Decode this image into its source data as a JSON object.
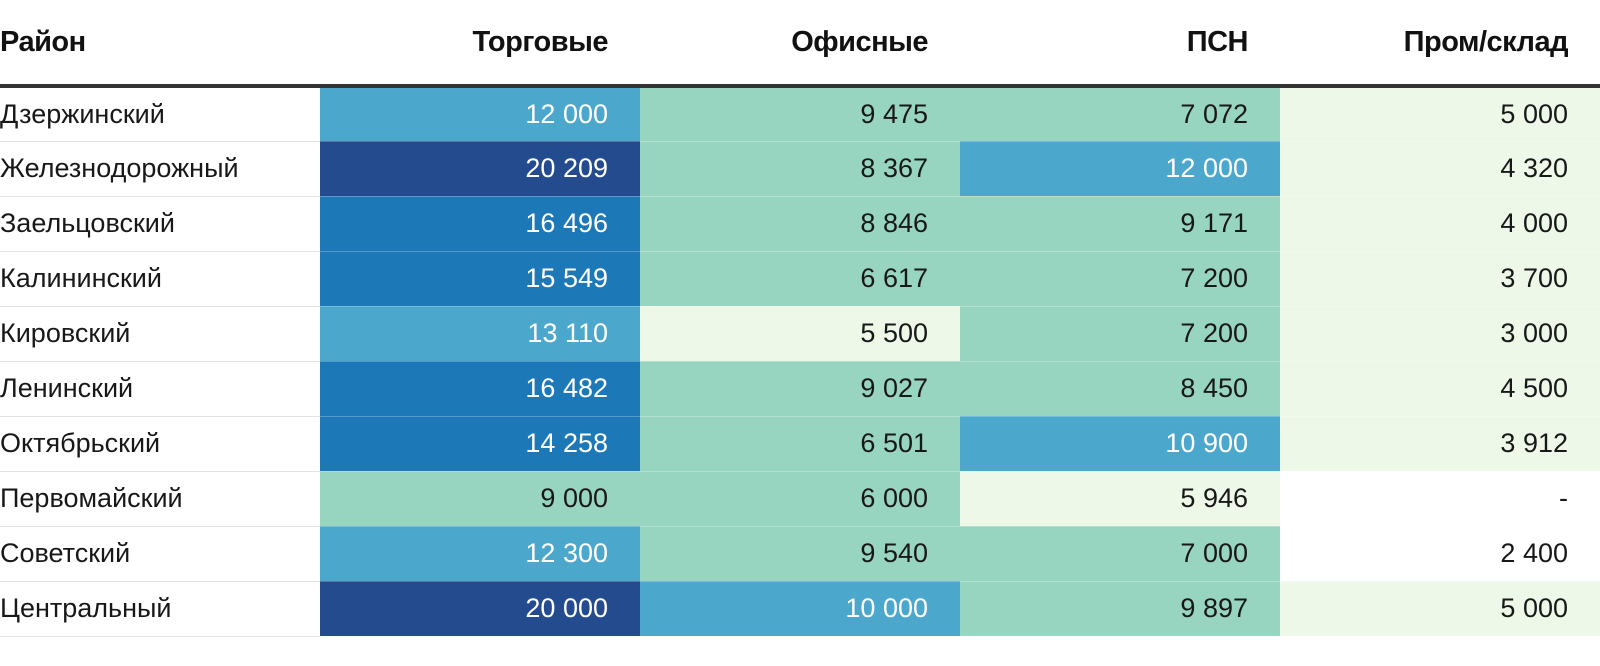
{
  "chart_data": {
    "type": "table",
    "title": "",
    "columns": [
      "Район",
      "Торговые",
      "Офисные",
      "ПСН",
      "Пром/склад"
    ],
    "rows": [
      {
        "district": "Дзержинский",
        "values": [
          "12 000",
          "9 475",
          "7 072",
          "5 000"
        ]
      },
      {
        "district": "Железнодорожный",
        "values": [
          "20 209",
          "8 367",
          "12 000",
          "4 320"
        ]
      },
      {
        "district": "Заельцовский",
        "values": [
          "16 496",
          "8 846",
          "9 171",
          "4 000"
        ]
      },
      {
        "district": "Калининский",
        "values": [
          "15 549",
          "6 617",
          "7 200",
          "3 700"
        ]
      },
      {
        "district": "Кировский",
        "values": [
          "13 110",
          "5 500",
          "7 200",
          "3 000"
        ]
      },
      {
        "district": "Ленинский",
        "values": [
          "16 482",
          "9 027",
          "8 450",
          "4 500"
        ]
      },
      {
        "district": "Октябрьский",
        "values": [
          "14 258",
          "6 501",
          "10 900",
          "3 912"
        ]
      },
      {
        "district": "Первомайский",
        "values": [
          "9 000",
          "6 000",
          "5 946",
          "-"
        ]
      },
      {
        "district": "Советский",
        "values": [
          "12 300",
          "9 540",
          "7 000",
          "2 400"
        ]
      },
      {
        "district": "Центральный",
        "values": [
          "20 000",
          "10 000",
          "9 897",
          "5 000"
        ]
      }
    ],
    "color_scale": {
      "thresholds": [
        3000,
        6000,
        10000,
        14000,
        20000
      ],
      "colors": [
        "#ffffff",
        "#edf8e9",
        "#98d5c0",
        "#4ba8cc",
        "#1d78b8",
        "#254b8f"
      ],
      "light_text_from_index": 3,
      "dark_text": "#181818",
      "light_text": "#ffffff"
    }
  }
}
